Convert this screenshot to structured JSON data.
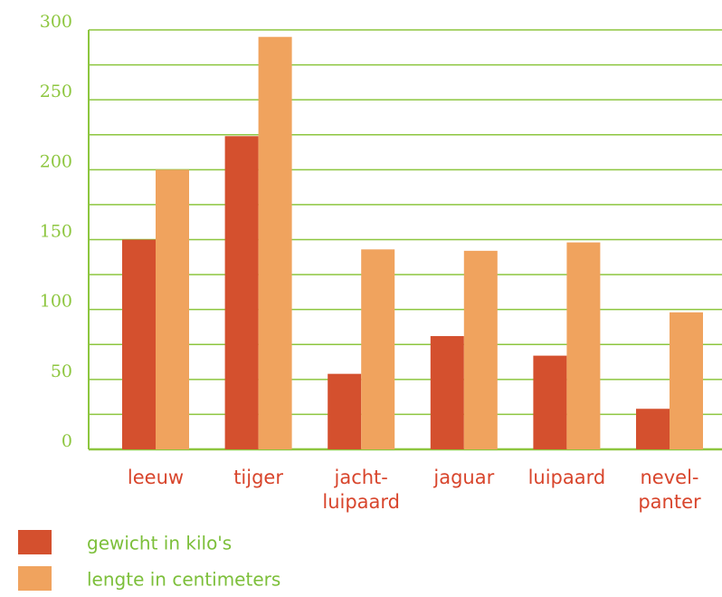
{
  "chart_data": {
    "type": "bar",
    "categories": [
      "leeuw",
      "tijger",
      "jacht-\nluipaard",
      "jaguar",
      "luipaard",
      "nevel-\npanter"
    ],
    "series": [
      {
        "name": "gewicht in kilo's",
        "color": "#d4502e",
        "values": [
          150,
          224,
          54,
          81,
          67,
          29
        ]
      },
      {
        "name": "lengte in centimeters",
        "color": "#f0a35e",
        "values": [
          200,
          295,
          143,
          142,
          148,
          98
        ]
      }
    ],
    "ylim": [
      0,
      300
    ],
    "yticks": [
      0,
      50,
      100,
      150,
      200,
      250,
      300
    ],
    "minor_yticks": [
      25,
      75,
      125,
      175,
      225,
      275
    ],
    "grid": true
  }
}
